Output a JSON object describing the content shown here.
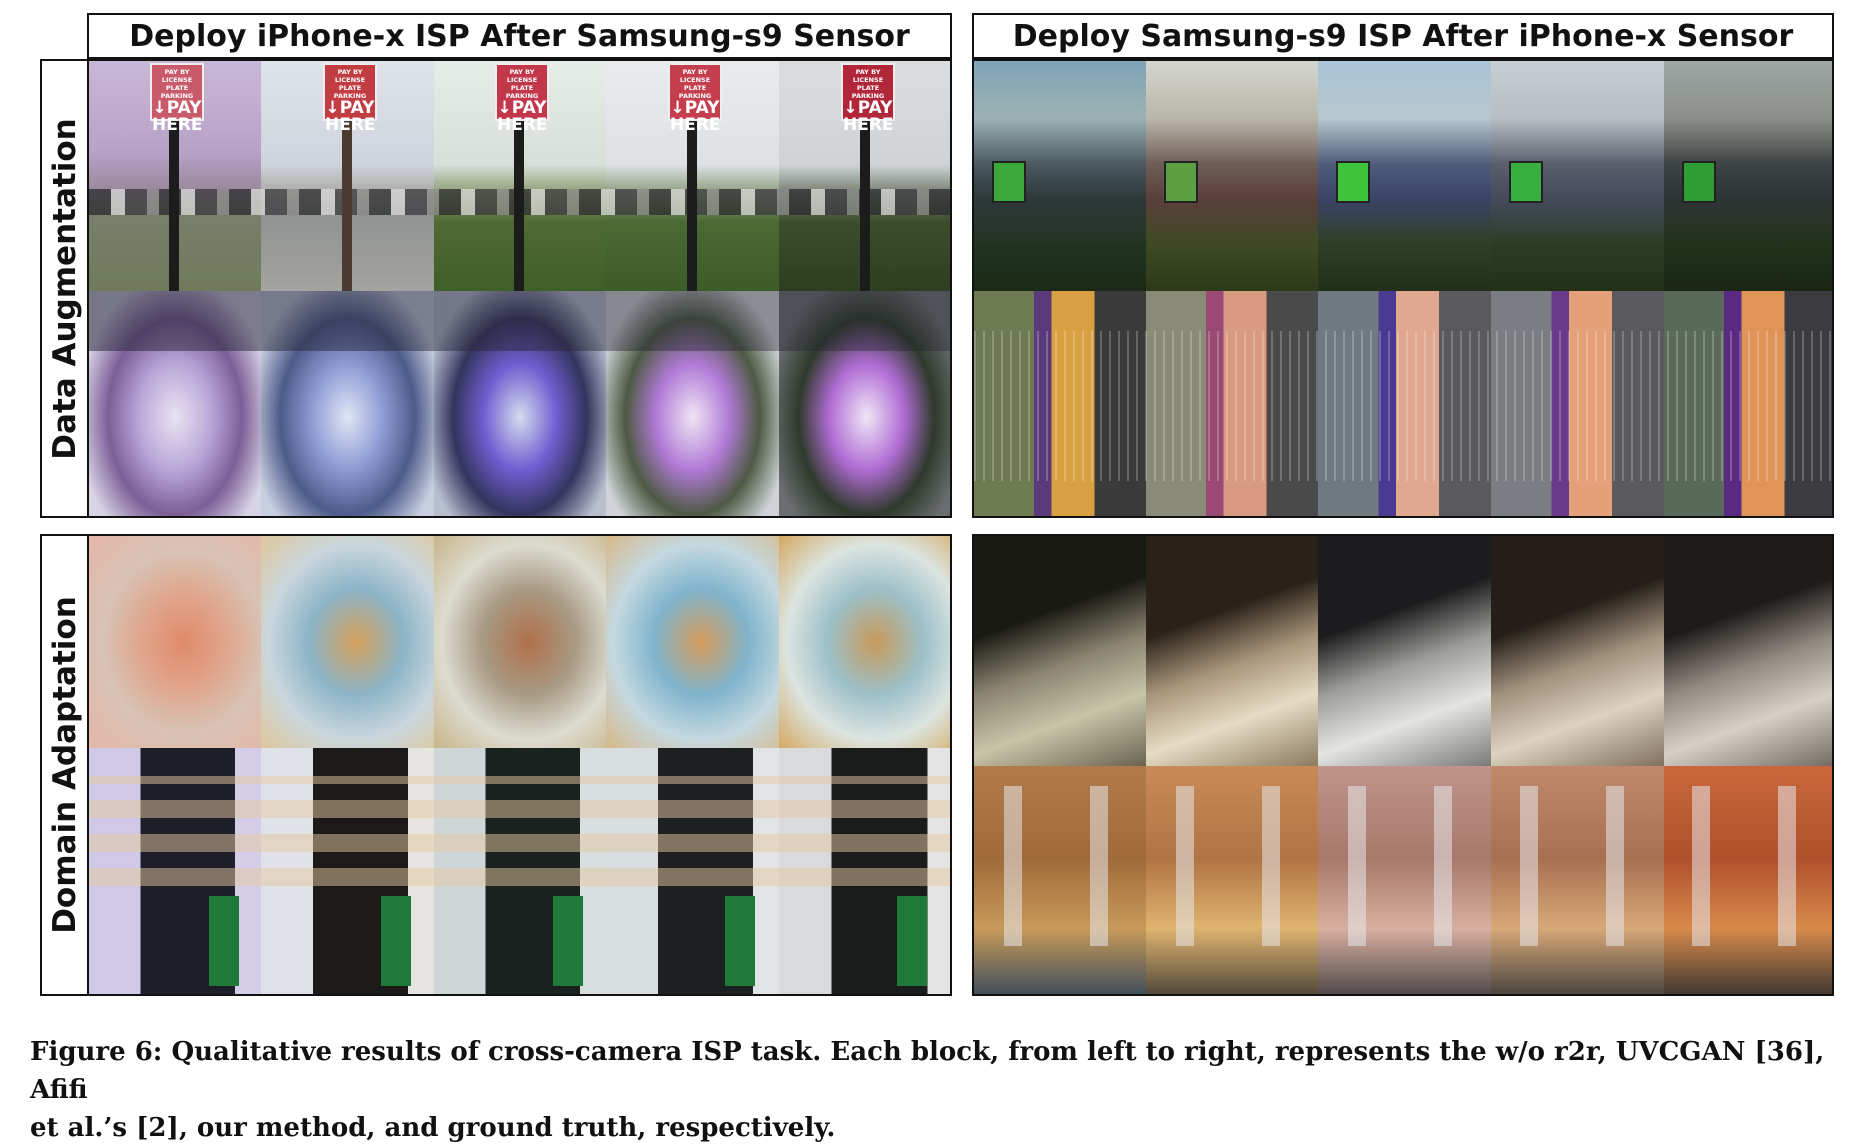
{
  "figure": {
    "left_block_title": "Deploy iPhone-x ISP After Samsung-s9 Sensor",
    "right_block_title": "Deploy Samsung-s9 ISP After iPhone-x Sensor",
    "row_labels": [
      "Data Augmentation",
      "Domain Adaptation"
    ],
    "sign_text": {
      "top": "PAY BY LICENSE PLATE PARKING",
      "line1": "PAY",
      "line2": "HERE",
      "arrow": "↓"
    },
    "caption": {
      "line1": "Figure 6: Qualitative results of cross-camera ISP task. Each block, from left to right, represents the w/o r2r, UVCGAN [36], Afifi",
      "line2": "et al.’s [2], our method, and ground truth, respectively."
    }
  }
}
